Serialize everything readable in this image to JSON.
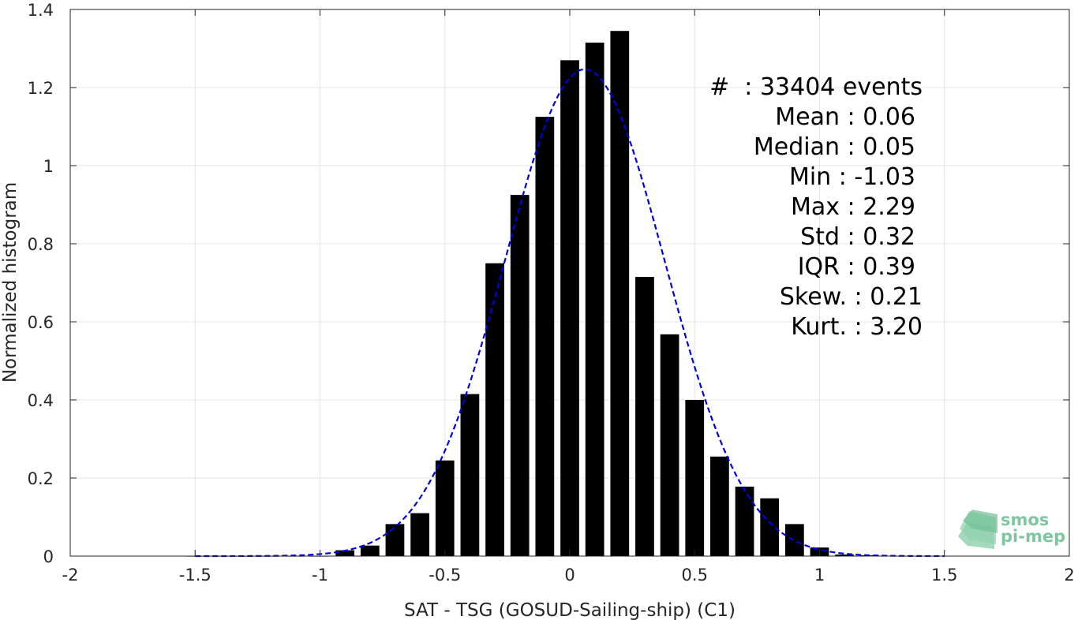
{
  "chart_data": {
    "type": "bar",
    "xlabel": "SAT - TSG (GOSUD-Sailing-ship) (C1)",
    "ylabel": "Normalized histogram",
    "xlim": [
      -2,
      2
    ],
    "ylim": [
      0,
      1.4
    ],
    "grid": true,
    "x_ticks": [
      -2,
      -1.5,
      -1,
      -0.5,
      0,
      0.5,
      1,
      1.5,
      2
    ],
    "x_tick_labels": [
      "-2",
      "-1.5",
      "-1",
      "-0.5",
      "0",
      "0.5",
      "1",
      "1.5",
      "2"
    ],
    "y_ticks": [
      0,
      0.2,
      0.4,
      0.6,
      0.8,
      1,
      1.2,
      1.4
    ],
    "y_tick_labels": [
      "0",
      "0.2",
      "0.4",
      "0.6",
      "0.8",
      "1",
      "1.2",
      "1.4"
    ],
    "bar_color": "#000000",
    "bars": {
      "x": [
        -1.5,
        -1.4,
        -1.3,
        -1.2,
        -1.1,
        -1.0,
        -0.9,
        -0.8,
        -0.7,
        -0.6,
        -0.5,
        -0.4,
        -0.3,
        -0.2,
        -0.1,
        0.0,
        0.1,
        0.2,
        0.3,
        0.4,
        0.5,
        0.6,
        0.7,
        0.8,
        0.9,
        1.0,
        1.1,
        1.2,
        1.3,
        1.4,
        1.5
      ],
      "values": [
        0,
        0,
        0,
        0,
        0,
        0,
        0.015,
        0.027,
        0.082,
        0.11,
        0.245,
        0.415,
        0.75,
        0.925,
        1.125,
        1.27,
        1.315,
        1.345,
        0.715,
        0.568,
        0.4,
        0.255,
        0.178,
        0.148,
        0.082,
        0.022,
        0.004,
        0.002,
        0.001,
        0.001,
        0.001
      ]
    },
    "fit_curve": {
      "type": "line",
      "style": "dashed",
      "color": "#0000e0",
      "mean": 0.06,
      "std": 0.32,
      "x_range": [
        -1.5,
        1.5
      ]
    }
  },
  "stats": {
    "lines": [
      "#  : 33404 events",
      "Mean : 0.06",
      "Median : 0.05",
      "Min : -1.03",
      "Max : 2.29",
      "Std : 0.32",
      "IQR : 0.39",
      "Skew. : 0.21",
      "Kurt. : 3.20"
    ]
  },
  "logo": {
    "line1": "smos",
    "line2": "pi-mep",
    "color": "#7fc6a0"
  }
}
